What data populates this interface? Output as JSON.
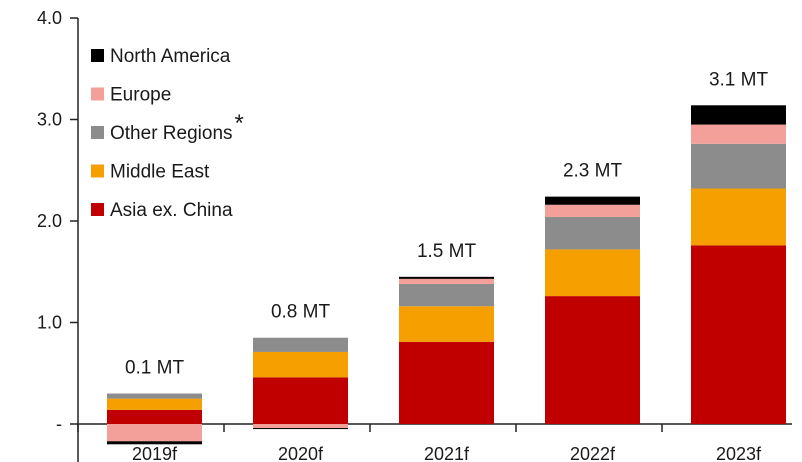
{
  "chart_data": {
    "type": "bar",
    "stacked": true,
    "categories": [
      "2019f",
      "2020f",
      "2021f",
      "2022f",
      "2023f"
    ],
    "ylim": [
      -0.2,
      4.0
    ],
    "y_ticks": [
      {
        "value": 0,
        "label": "-"
      },
      {
        "value": 1.0,
        "label": "1.0"
      },
      {
        "value": 2.0,
        "label": "2.0"
      },
      {
        "value": 3.0,
        "label": "3.0"
      },
      {
        "value": 4.0,
        "label": "4.0"
      }
    ],
    "grid": false,
    "legend_position": "top-left",
    "totals": [
      "0.1 MT",
      "0.8 MT",
      "1.5 MT",
      "2.3 MT",
      "3.1 MT"
    ],
    "legend_footnote_marker": "*",
    "series": [
      {
        "name": "Asia  ex. China",
        "color": "#c00000",
        "values": [
          0.14,
          0.46,
          0.81,
          1.26,
          1.76
        ]
      },
      {
        "name": "Middle East",
        "color": "#f5a000",
        "values": [
          0.11,
          0.25,
          0.35,
          0.46,
          0.56
        ]
      },
      {
        "name": "Other Regions",
        "color": "#8c8c8c",
        "values": [
          0.05,
          0.14,
          0.22,
          0.32,
          0.44
        ]
      },
      {
        "name": "Europe",
        "color": "#f4a09a",
        "values": [
          -0.17,
          -0.04,
          0.05,
          0.12,
          0.19
        ]
      },
      {
        "name": "North America",
        "color": "#000000",
        "values": [
          -0.03,
          -0.01,
          0.02,
          0.08,
          0.19
        ]
      }
    ]
  }
}
